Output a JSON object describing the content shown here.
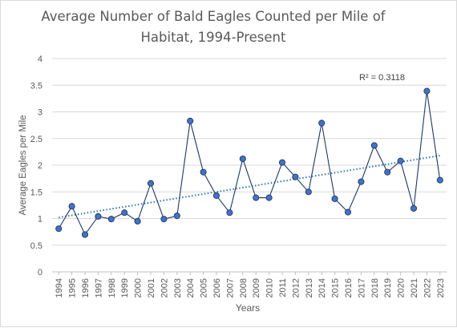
{
  "chart_data": {
    "type": "line",
    "title": [
      "Average Number of Bald Eagles Counted per Mile of",
      "Habitat, 1994-Present"
    ],
    "xlabel": "Years",
    "ylabel": "Average Eagles per Mile",
    "ylim": [
      0,
      4
    ],
    "yticks": [
      "0",
      "0.5",
      "1",
      "1.5",
      "2",
      "2.5",
      "3",
      "3.5",
      "4"
    ],
    "grid": true,
    "trendline": {
      "type": "linear",
      "style": "dotted",
      "r_squared_label": "R² = 0.3118",
      "start": 1.02,
      "end": 2.18
    },
    "categories": [
      "1994",
      "1995",
      "1996",
      "1997",
      "1998",
      "1999",
      "2000",
      "2001",
      "2002",
      "2003",
      "2004",
      "2005",
      "2006",
      "2007",
      "2008",
      "2009",
      "2010",
      "2011",
      "2012",
      "2013",
      "2014",
      "2015",
      "2016",
      "2017",
      "2018",
      "2019",
      "2020",
      "2021",
      "2022",
      "2023"
    ],
    "series": [
      {
        "values": [
          0.81,
          1.23,
          0.7,
          1.04,
          0.99,
          1.11,
          0.95,
          1.66,
          0.99,
          1.05,
          2.83,
          1.87,
          1.43,
          1.11,
          2.12,
          1.39,
          1.39,
          2.05,
          1.78,
          1.5,
          2.79,
          1.37,
          1.12,
          1.69,
          2.37,
          1.87,
          2.08,
          1.19,
          3.39,
          1.72
        ],
        "color": "#1f3864",
        "marker_fill": "#4472c4"
      }
    ],
    "trend_color": "#2e75b6"
  }
}
